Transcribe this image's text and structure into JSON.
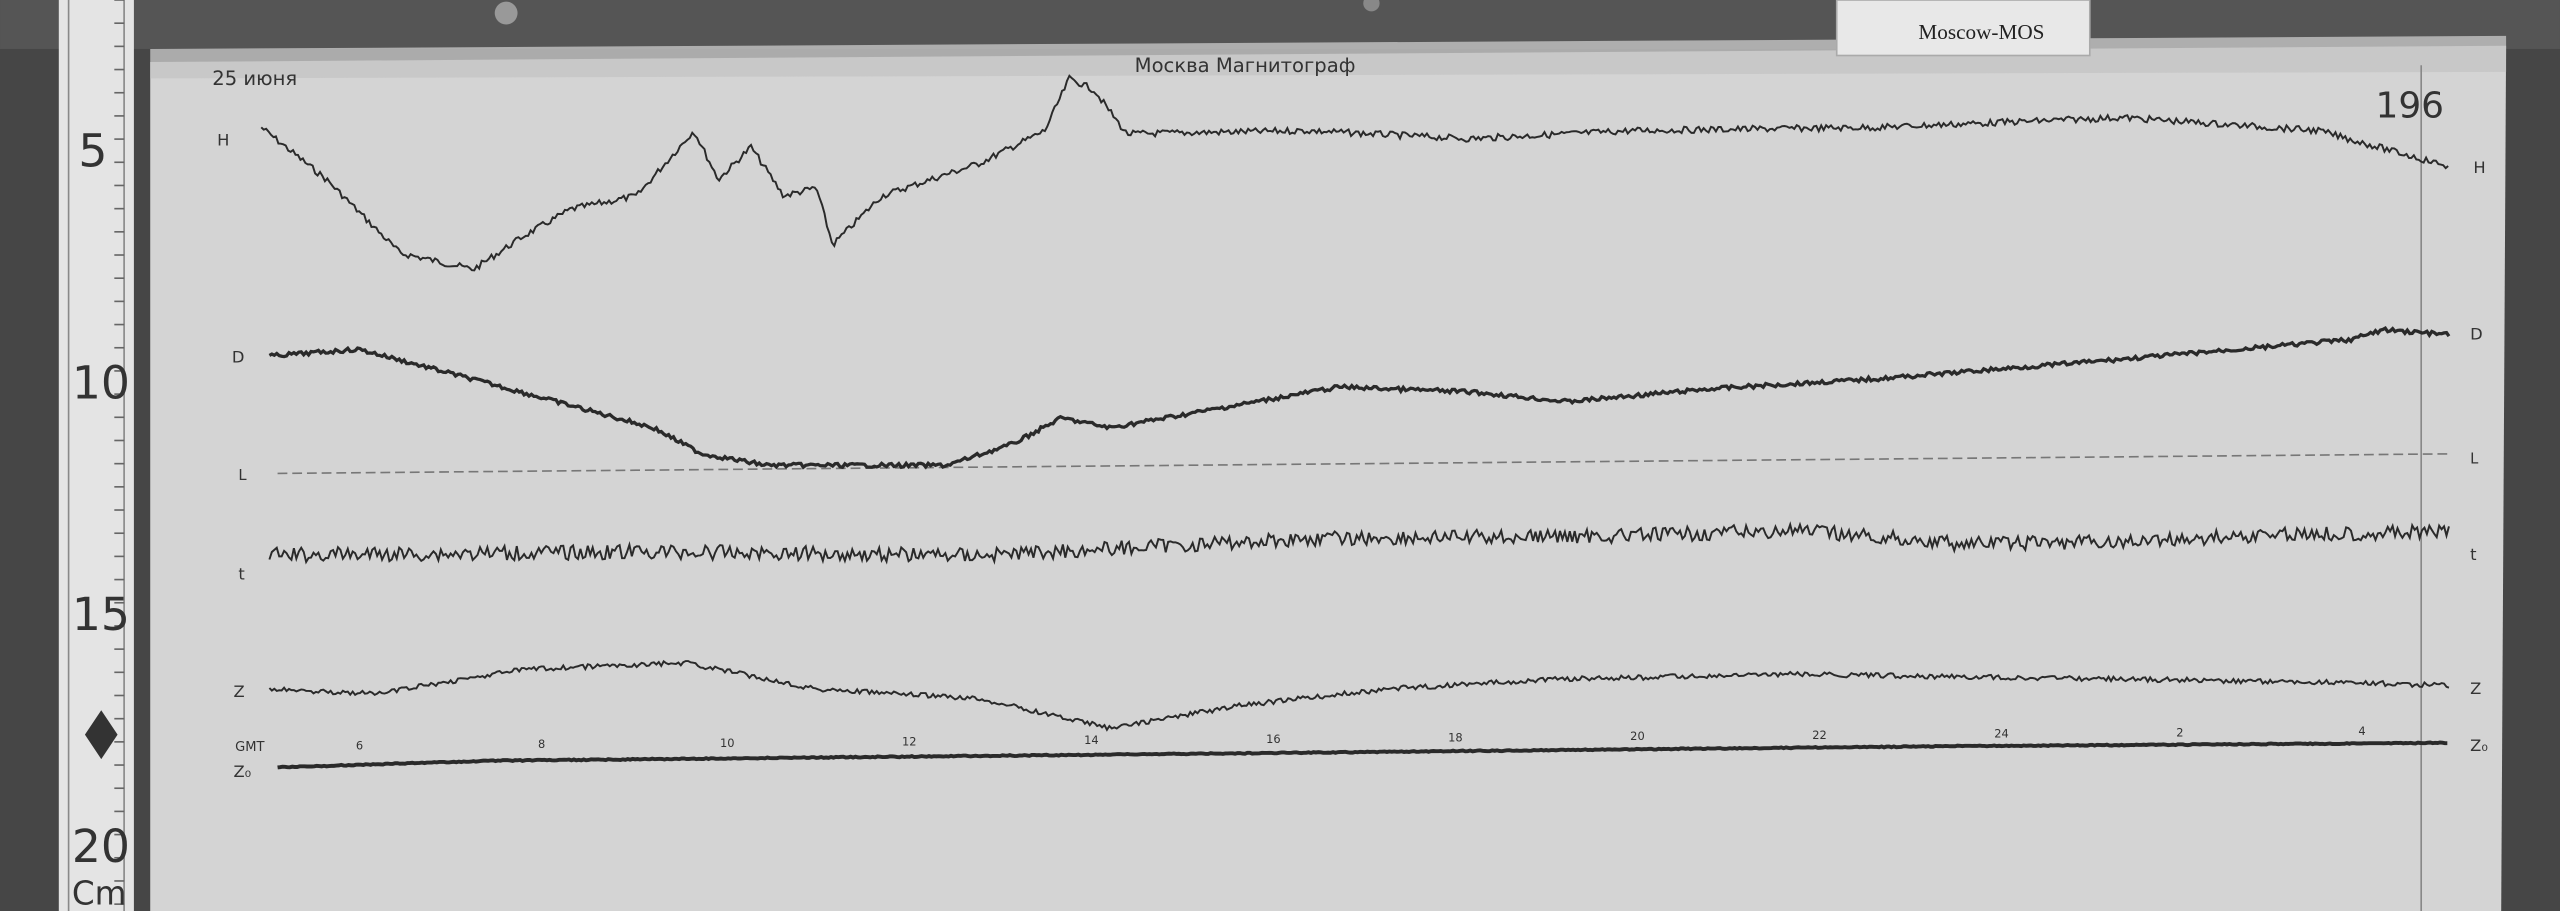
{
  "label_card": {
    "text": "Moscow-MOS"
  },
  "header": {
    "date": "25 июня",
    "title": "Москва  Магнитограф"
  },
  "page_number": "196",
  "ruler": {
    "marks": [
      "5",
      "10",
      "15",
      "20"
    ],
    "unit": "Cm"
  },
  "traces": {
    "h_label": "H",
    "d_label": "D",
    "baseline_label": "L",
    "t_label": "t",
    "z_label": "Z",
    "z0_label": "Z₀"
  },
  "time_axis": {
    "label": "GMT",
    "hours": [
      "6",
      "8",
      "10",
      "12",
      "14",
      "16",
      "18",
      "20",
      "22",
      "24",
      "2",
      "4"
    ]
  },
  "colors": {
    "paper": "#d6d6d6",
    "ink": "#2a2a2a",
    "board": "#4a4a4a"
  }
}
